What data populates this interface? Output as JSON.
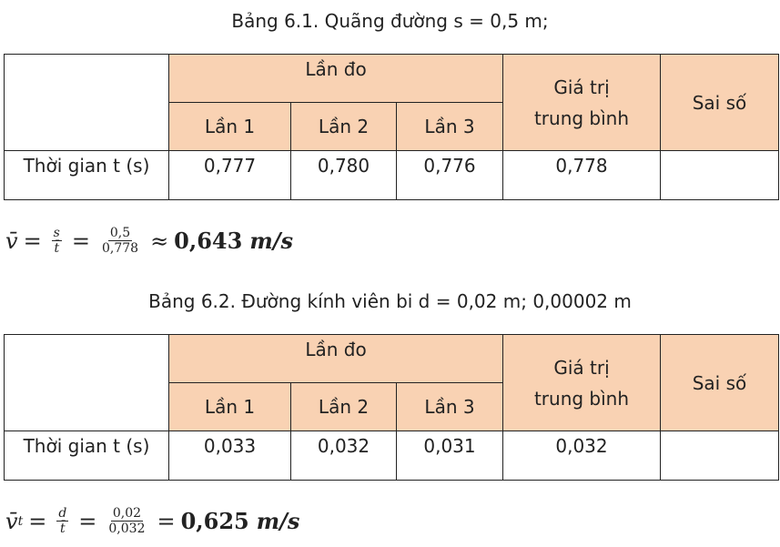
{
  "table1": {
    "caption": "Bảng 6.1. Quãng đường s = 0,5 m;",
    "header_group": "Lần đo",
    "header_avg_line1": "Giá trị",
    "header_avg_line2": "trung bình",
    "header_error": "Sai số",
    "trials": [
      "Lần 1",
      "Lần 2",
      "Lần 3"
    ],
    "row_label": "Thời gian t (s)",
    "values": [
      "0,777",
      "0,780",
      "0,776"
    ],
    "average": "0,778",
    "error": ""
  },
  "formula1": {
    "lhs": "v̄",
    "eq1": "=",
    "frac1_num": "s",
    "frac1_den": "t̄",
    "eq2": "=",
    "frac2_num": "0,5",
    "frac2_den": "0,778",
    "approx": "≈",
    "result": "0,643",
    "unit": "m/s"
  },
  "table2": {
    "caption": "Bảng 6.2. Đường kính viên bi d = 0,02 m; 0,00002 m",
    "header_group": "Lần đo",
    "header_avg_line1": "Giá trị",
    "header_avg_line2": "trung bình",
    "header_error": "Sai số",
    "trials": [
      "Lần 1",
      "Lần 2",
      "Lần 3"
    ],
    "row_label": "Thời gian t (s)",
    "values": [
      "0,033",
      "0,032",
      "0,031"
    ],
    "average": "0,032",
    "error": ""
  },
  "formula2": {
    "lhs": "v̄",
    "lhs_sub": "t",
    "eq1": "=",
    "frac1_num": "d",
    "frac1_den": "t̄",
    "eq2": "=",
    "frac2_num": "0,02",
    "frac2_den": "0,032",
    "eq3": "=",
    "result": "0,625",
    "unit": "m/s"
  }
}
